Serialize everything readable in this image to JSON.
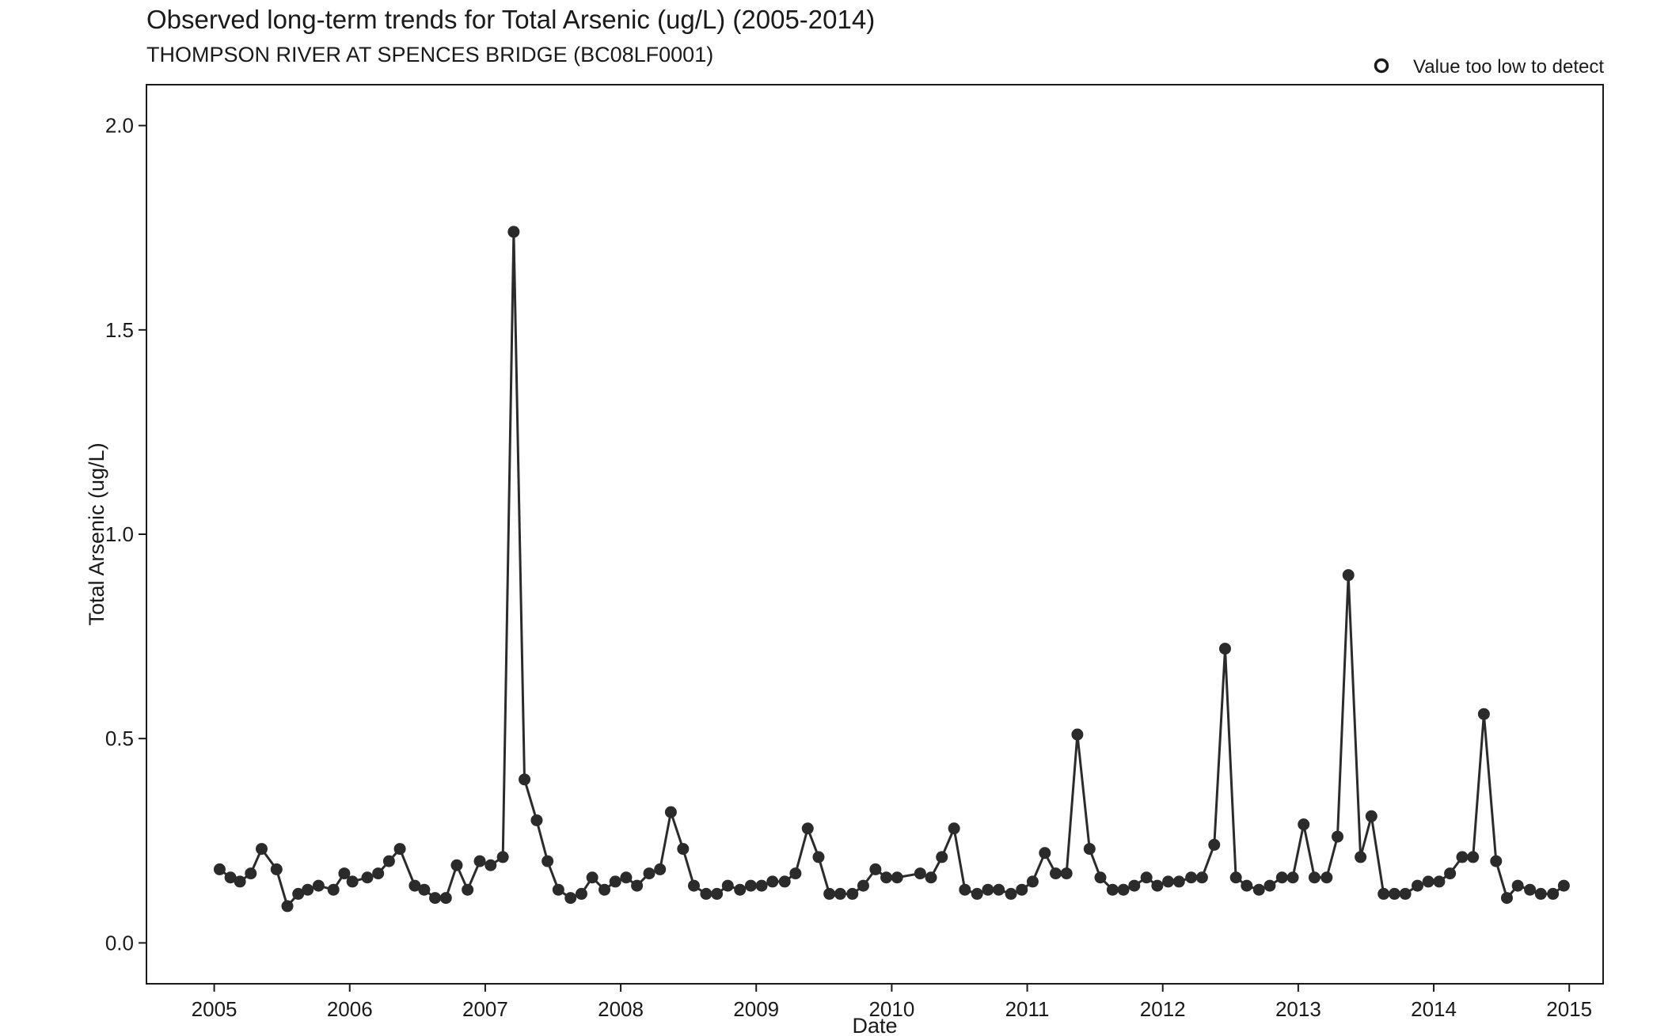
{
  "title": "Observed long-term trends for Total Arsenic (ug/L) (2005-2014)",
  "subtitle": "THOMPSON RIVER AT SPENCES BRIDGE (BC08LF0001)",
  "legend": {
    "label": "Value too low to detect",
    "placement": "top-right"
  },
  "chart_data": {
    "type": "line",
    "xlabel": "Date",
    "ylabel": "Total Arsenic (ug/L)",
    "xlim": [
      2004.5,
      2015.25
    ],
    "ylim": [
      -0.1,
      2.1
    ],
    "x_ticks": [
      2005,
      2006,
      2007,
      2008,
      2009,
      2010,
      2011,
      2012,
      2013,
      2014,
      2015
    ],
    "y_ticks": [
      0.0,
      0.5,
      1.0,
      1.5,
      2.0
    ],
    "y_tick_labels": [
      "0.0",
      "0.5",
      "1.0",
      "1.5",
      "2.0"
    ],
    "grid": false,
    "series": [
      {
        "color": "#2b2b2b",
        "x": [
          2005.04,
          2005.12,
          2005.19,
          2005.27,
          2005.35,
          2005.46,
          2005.54,
          2005.62,
          2005.69,
          2005.77,
          2005.88,
          2005.96,
          2006.02,
          2006.13,
          2006.21,
          2006.29,
          2006.37,
          2006.48,
          2006.55,
          2006.63,
          2006.71,
          2006.79,
          2006.87,
          2006.96,
          2007.04,
          2007.13,
          2007.21,
          2007.29,
          2007.38,
          2007.46,
          2007.54,
          2007.63,
          2007.71,
          2007.79,
          2007.88,
          2007.96,
          2008.04,
          2008.12,
          2008.21,
          2008.29,
          2008.37,
          2008.46,
          2008.54,
          2008.63,
          2008.71,
          2008.79,
          2008.88,
          2008.96,
          2009.04,
          2009.12,
          2009.21,
          2009.29,
          2009.38,
          2009.46,
          2009.54,
          2009.62,
          2009.71,
          2009.79,
          2009.88,
          2009.96,
          2010.04,
          2010.21,
          2010.29,
          2010.37,
          2010.46,
          2010.54,
          2010.63,
          2010.71,
          2010.79,
          2010.88,
          2010.96,
          2011.04,
          2011.13,
          2011.21,
          2011.29,
          2011.37,
          2011.46,
          2011.54,
          2011.63,
          2011.71,
          2011.79,
          2011.88,
          2011.96,
          2012.04,
          2012.12,
          2012.21,
          2012.29,
          2012.38,
          2012.46,
          2012.54,
          2012.62,
          2012.71,
          2012.79,
          2012.88,
          2012.96,
          2013.04,
          2013.12,
          2013.21,
          2013.29,
          2013.37,
          2013.46,
          2013.54,
          2013.63,
          2013.71,
          2013.79,
          2013.88,
          2013.96,
          2014.04,
          2014.12,
          2014.21,
          2014.29,
          2014.37,
          2014.46,
          2014.54,
          2014.62,
          2014.71,
          2014.79,
          2014.88,
          2014.96
        ],
        "values": [
          0.18,
          0.16,
          0.15,
          0.17,
          0.23,
          0.18,
          0.09,
          0.12,
          0.13,
          0.14,
          0.13,
          0.17,
          0.15,
          0.16,
          0.17,
          0.2,
          0.23,
          0.14,
          0.13,
          0.11,
          0.11,
          0.19,
          0.13,
          0.2,
          0.19,
          0.21,
          1.74,
          0.4,
          0.3,
          0.2,
          0.13,
          0.11,
          0.12,
          0.16,
          0.13,
          0.15,
          0.16,
          0.14,
          0.17,
          0.18,
          0.32,
          0.23,
          0.14,
          0.12,
          0.12,
          0.14,
          0.13,
          0.14,
          0.14,
          0.15,
          0.15,
          0.17,
          0.28,
          0.21,
          0.12,
          0.12,
          0.12,
          0.14,
          0.18,
          0.16,
          0.16,
          0.17,
          0.16,
          0.21,
          0.28,
          0.13,
          0.12,
          0.13,
          0.13,
          0.12,
          0.13,
          0.15,
          0.22,
          0.17,
          0.17,
          0.51,
          0.23,
          0.16,
          0.13,
          0.13,
          0.14,
          0.16,
          0.14,
          0.15,
          0.15,
          0.16,
          0.16,
          0.24,
          0.72,
          0.16,
          0.14,
          0.13,
          0.14,
          0.16,
          0.16,
          0.29,
          0.16,
          0.16,
          0.26,
          0.9,
          0.21,
          0.31,
          0.12,
          0.12,
          0.12,
          0.14,
          0.15,
          0.15,
          0.17,
          0.21,
          0.21,
          0.56,
          0.2,
          0.11,
          0.14,
          0.13,
          0.12,
          0.12,
          0.14
        ]
      }
    ]
  }
}
